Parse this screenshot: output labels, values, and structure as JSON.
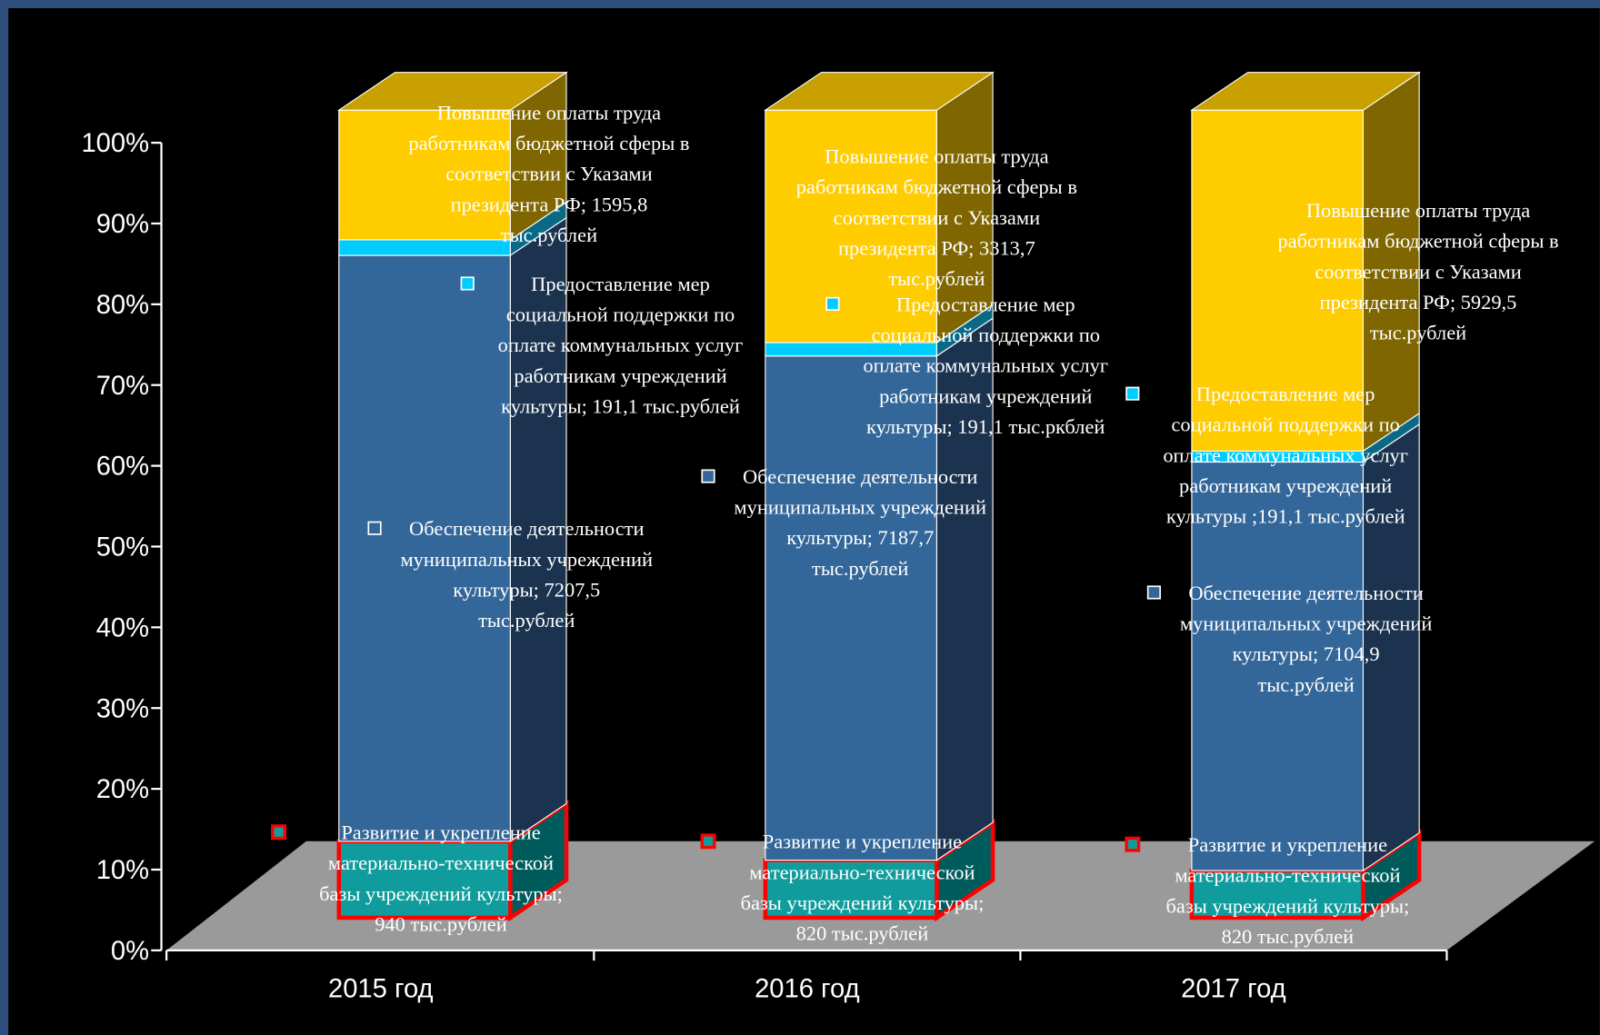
{
  "chart_data": {
    "type": "bar",
    "stacking": "percent",
    "categories": [
      "2015 год",
      "2016 год",
      "2017 год"
    ],
    "series": [
      {
        "color": "#109c9c",
        "side_color": "#005c5c",
        "border": "#ff0000",
        "values": [
          940,
          820,
          820
        ],
        "value_labels": [
          "Развитие и укрепление\nматериально-технической\nбазы учреждений культуры;\n940 тыс.рублей",
          "Развитие и укрепление\nматериально-технической\nбазы учреждений культуры;\n820 тыс.рублей",
          "Развитие и укрепление\nматериально-технической\nбазы учреждений культуры;\n820 тыс.рублей"
        ]
      },
      {
        "color": "#336699",
        "side_color": "#1b334f",
        "values": [
          7207.5,
          7187.7,
          7104.9
        ],
        "value_labels": [
          "Обеспечение деятельности\nмуниципальных учреждений\nкультуры; 7207,5\nтыс.рублей",
          "Обеспечение деятельности\nмуниципальных учреждений\nкультуры; 7187,7\nтыс.рублей",
          "Обеспечение деятельности\nмуниципальных учреждений\nкультуры; 7104,9\nтыс.рублей"
        ]
      },
      {
        "color": "#00ccff",
        "side_color": "#0a6a86",
        "values": [
          191.1,
          191.1,
          191.1
        ],
        "value_labels": [
          "Предоставление мер\nсоциальной поддержки по\nоплате коммунальных услуг\nработникам учреждений\nкультуры; 191,1 тыс.рублей",
          "Предоставление мер\nсоциальной поддержки по\nоплате коммунальных услуг\nработникам учреждений\nкультуры; 191,1 тыс.ркблей",
          "Предоставление мер\nсоциальной поддержки по\nоплате коммунальных услуг\nработникам учреждений\nкультуры ;191,1 тыс.рублей"
        ]
      },
      {
        "color": "#ffcc00",
        "side_color": "#806600",
        "top_color": "#c8a000",
        "values": [
          1595.8,
          3313.7,
          5929.5
        ],
        "value_labels": [
          "Повышение оплаты труда\nработникам бюджетной сферы в\nсоответствии с Указами\nпрезидента РФ; 1595,8\nтыс.рублей",
          "Повышение оплаты труда\nработникам бюджетной сферы в\nсоответствии с Указами\nпрезидента РФ; 3313,7\nтыс.рублей",
          "Повышение оплаты труда\nработникам бюджетной сферы в\nсоответствии с Указами\nпрезидента РФ; 5929,5\nтыс.рублей"
        ]
      }
    ],
    "ylim": [
      0,
      100
    ],
    "yticks": [
      {
        "value": 0,
        "label": "0%"
      },
      {
        "value": 10,
        "label": "10%"
      },
      {
        "value": 20,
        "label": "20%"
      },
      {
        "value": 30,
        "label": "30%"
      },
      {
        "value": 40,
        "label": "40%"
      },
      {
        "value": 50,
        "label": "50%"
      },
      {
        "value": 60,
        "label": "60%"
      },
      {
        "value": 70,
        "label": "70%"
      },
      {
        "value": 80,
        "label": "80%"
      },
      {
        "value": 90,
        "label": "90%"
      },
      {
        "value": 100,
        "label": "100%"
      }
    ],
    "grid": false
  }
}
